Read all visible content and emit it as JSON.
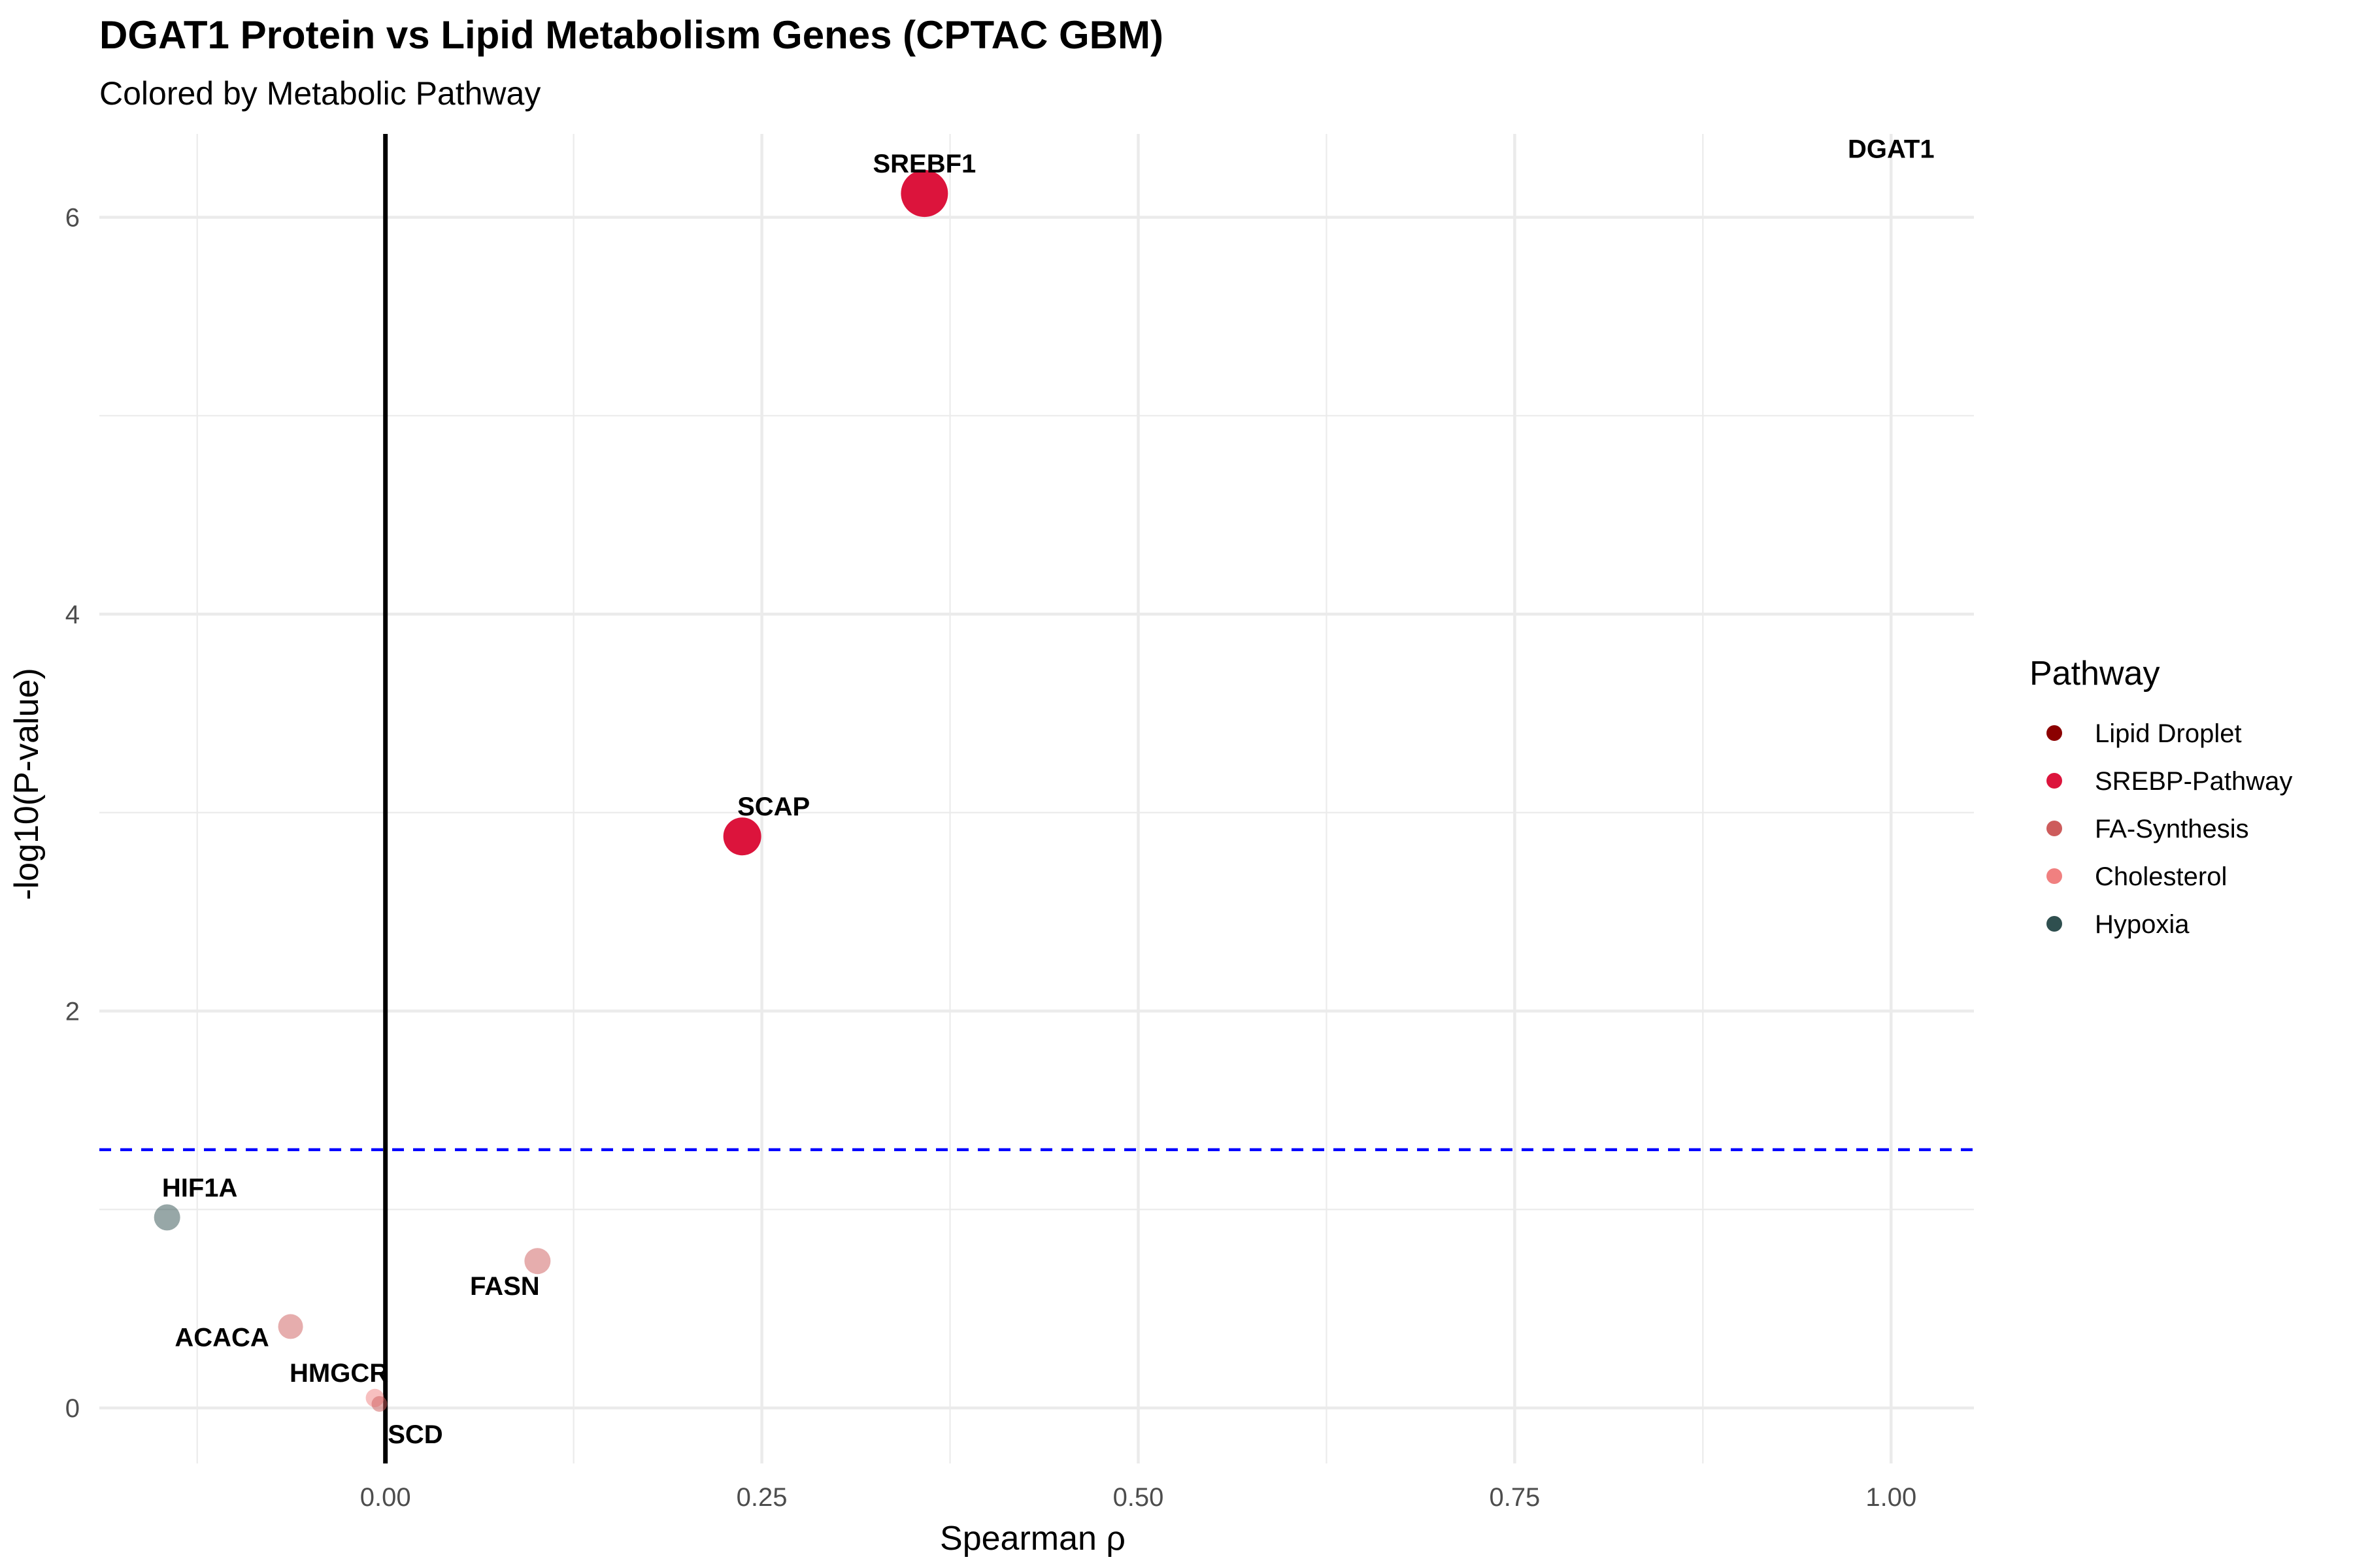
{
  "chart_data": {
    "type": "scatter",
    "title": "DGAT1 Protein vs Lipid Metabolism Genes (CPTAC GBM)",
    "subtitle": "Colored by Metabolic Pathway",
    "xlabel": "Spearman ρ",
    "ylabel": "-log10(P-value)",
    "xlim": [
      -0.19,
      1.055
    ],
    "ylim": [
      -0.28,
      6.42
    ],
    "x_ticks": [
      0.0,
      0.25,
      0.5,
      0.75,
      1.0
    ],
    "x_tick_labels": [
      "0.00",
      "0.25",
      "0.50",
      "0.75",
      "1.00"
    ],
    "y_ticks": [
      0,
      2,
      4,
      6
    ],
    "y_tick_labels": [
      "0",
      "2",
      "4",
      "6"
    ],
    "grid": true,
    "reference_lines": {
      "vertical_x": 0,
      "horizontal_dashed_y": 1.301,
      "horizontal_color": "#0000ff"
    },
    "legend": {
      "title": "Pathway",
      "placement": "right",
      "entries": [
        {
          "label": "Lipid Droplet",
          "color": "#8b0000"
        },
        {
          "label": "SREBP-Pathway",
          "color": "#dc143c"
        },
        {
          "label": "FA-Synthesis",
          "color": "#cd5c5c"
        },
        {
          "label": "Cholesterol",
          "color": "#f08080"
        },
        {
          "label": "Hypoxia",
          "color": "#2f4f4f"
        }
      ]
    },
    "points": [
      {
        "gene": "SREBF1",
        "x": 0.358,
        "y": 6.12,
        "pathway": "SREBP-Pathway",
        "size": 36,
        "opacity": 1.0,
        "label_dx": 0,
        "label_dy": -32
      },
      {
        "gene": "SCAP",
        "x": 0.237,
        "y": 2.88,
        "pathway": "SREBP-Pathway",
        "size": 29,
        "opacity": 1.0,
        "label_dx": 48,
        "label_dy": -32
      },
      {
        "gene": "HIF1A",
        "x": -0.145,
        "y": 0.96,
        "pathway": "Hypoxia",
        "size": 20,
        "opacity": 0.5,
        "label_dx": 50,
        "label_dy": -32
      },
      {
        "gene": "FASN",
        "x": 0.101,
        "y": 0.74,
        "pathway": "FA-Synthesis",
        "size": 20,
        "opacity": 0.5,
        "label_dx": -50,
        "label_dy": 52
      },
      {
        "gene": "ACACA",
        "x": -0.063,
        "y": 0.41,
        "pathway": "FA-Synthesis",
        "size": 19,
        "opacity": 0.5,
        "label_dx": -105,
        "label_dy": 30
      },
      {
        "gene": "HMGCR",
        "x": -0.007,
        "y": 0.05,
        "pathway": "Cholesterol",
        "size": 14,
        "opacity": 0.5,
        "label_dx": -55,
        "label_dy": -25
      },
      {
        "gene": "SCD",
        "x": -0.004,
        "y": 0.02,
        "pathway": "FA-Synthesis",
        "size": 12,
        "opacity": 0.5,
        "label_dx": 55,
        "label_dy": 60
      },
      {
        "gene": "DGAT1",
        "x": 1.0,
        "y": 6.3,
        "pathway": "Lipid Droplet",
        "size": 0,
        "opacity": 0.0,
        "label_dx": 0,
        "label_dy": 0
      }
    ]
  }
}
